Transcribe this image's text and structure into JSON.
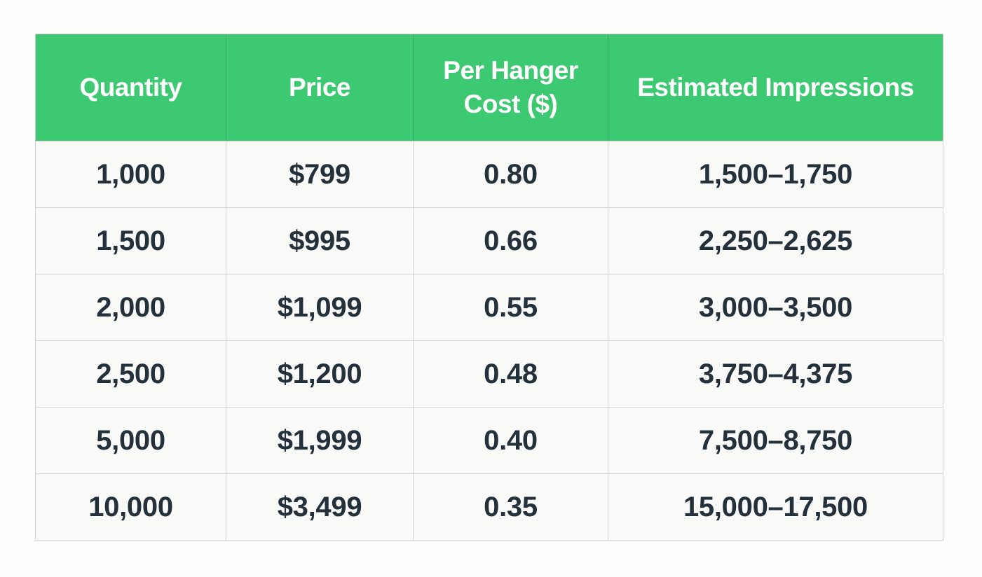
{
  "colors": {
    "page_bg": "#fdfdfc",
    "header_bg": "#3cc971",
    "header_text": "#ffffff",
    "cell_bg": "#f9f9f7",
    "cell_text": "#25313a",
    "border": "#c9cccd",
    "row_border": "#d3d5d5"
  },
  "chart_data": {
    "type": "table",
    "title": "",
    "columns": [
      "Quantity",
      "Price",
      "Per Hanger Cost ($)",
      "Estimated Impressions"
    ],
    "rows": [
      [
        "1,000",
        "$799",
        "0.80",
        "1,500–1,750"
      ],
      [
        "1,500",
        "$995",
        "0.66",
        "2,250–2,625"
      ],
      [
        "2,000",
        "$1,099",
        "0.55",
        "3,000–3,500"
      ],
      [
        "2,500",
        "$1,200",
        "0.48",
        "3,750–4,375"
      ],
      [
        "5,000",
        "$1,999",
        "0.40",
        "7,500–8,750"
      ],
      [
        "10,000",
        "$3,499",
        "0.35",
        "15,000–17,500"
      ]
    ]
  }
}
